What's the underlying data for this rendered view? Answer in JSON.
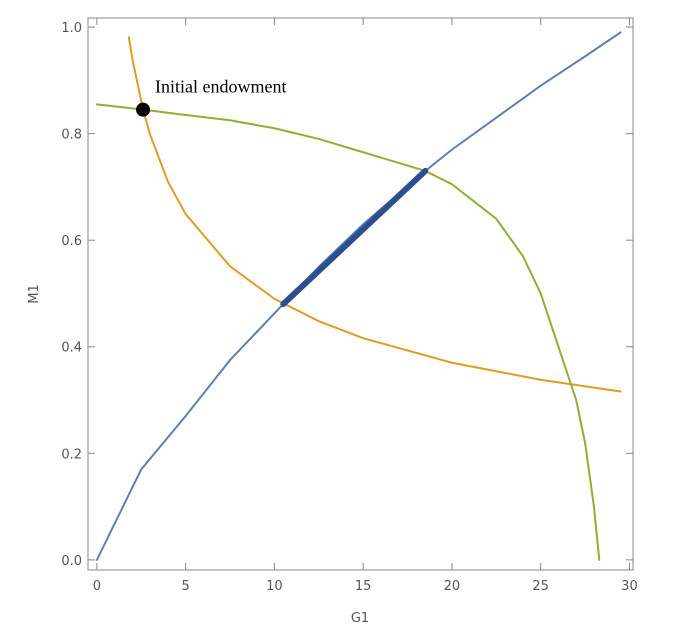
{
  "chart_data": {
    "type": "line",
    "xlabel": "G1",
    "ylabel": "M1",
    "xlim": [
      -0.5,
      30.2
    ],
    "ylim": [
      -0.019,
      1.017
    ],
    "xticks": [
      0,
      5,
      10,
      15,
      20,
      25,
      30
    ],
    "yticks": [
      {
        "value": 0,
        "label": "0.0"
      },
      0.2,
      0.4,
      0.6,
      0.8,
      {
        "value": 1,
        "label": "1.0"
      }
    ],
    "series": [
      {
        "color": "#5e81b5",
        "width": 2,
        "x": [
          0,
          2.5,
          5,
          7.5,
          10.5,
          12.5,
          15,
          18.5,
          20,
          22.5,
          25,
          27.5,
          29.5
        ],
        "values": [
          0,
          0.17,
          0.27,
          0.375,
          0.48,
          0.55,
          0.63,
          0.73,
          0.77,
          0.83,
          0.89,
          0.945,
          0.99
        ]
      },
      {
        "color": "#e19c24",
        "width": 2,
        "x": [
          1.8,
          2,
          2.6,
          3,
          4,
          5,
          7.5,
          10,
          12.5,
          15,
          20,
          25,
          29.5
        ],
        "values": [
          0.981,
          0.94,
          0.845,
          0.798,
          0.71,
          0.649,
          0.551,
          0.49,
          0.448,
          0.416,
          0.37,
          0.338,
          0.316
        ]
      },
      {
        "color": "#8fb032",
        "width": 2,
        "x": [
          0,
          2.6,
          5,
          7.5,
          10,
          12.5,
          15,
          17.5,
          18.5,
          20,
          22.5,
          24,
          25,
          26,
          27,
          27.5,
          28,
          28.3
        ],
        "values": [
          0.855,
          0.845,
          0.835,
          0.825,
          0.81,
          0.79,
          0.765,
          0.74,
          0.73,
          0.705,
          0.64,
          0.57,
          0.5,
          0.4,
          0.3,
          0.22,
          0.1,
          0
        ]
      },
      {
        "color": "#2d4f8e",
        "width": 6,
        "x": [
          10.5,
          18.5
        ],
        "values": [
          0.48,
          0.73
        ]
      }
    ],
    "point": {
      "x": 2.6,
      "y": 0.845,
      "label": "Initial endowment",
      "color": "#000000"
    }
  }
}
